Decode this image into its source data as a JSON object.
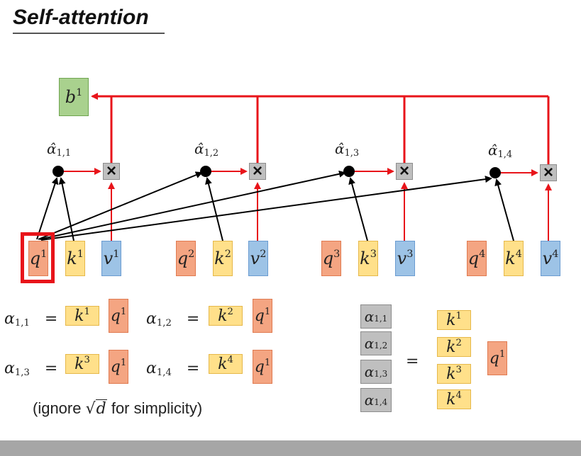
{
  "slide": {
    "title": "Self-attention",
    "caption_prefix": "(ignore ",
    "caption_sqrt": "√",
    "caption_d": "d",
    "caption_suffix": " for simplicity)"
  },
  "output": {
    "var": "b",
    "sup": "1"
  },
  "inputs": [
    {
      "q": "q",
      "k": "k",
      "v": "v",
      "sup": "1"
    },
    {
      "q": "q",
      "k": "k",
      "v": "v",
      "sup": "2"
    },
    {
      "q": "q",
      "k": "k",
      "v": "v",
      "sup": "3"
    },
    {
      "q": "q",
      "k": "k",
      "v": "v",
      "sup": "4"
    }
  ],
  "alpha_hats": [
    {
      "sym": "α̂",
      "sub": "1,1"
    },
    {
      "sym": "α̂",
      "sub": "1,2"
    },
    {
      "sym": "α̂",
      "sub": "1,3"
    },
    {
      "sym": "α̂",
      "sub": "1,4"
    }
  ],
  "multiply_symbol": "×",
  "equations": [
    {
      "lhs_sym": "α",
      "lhs_sub": "1,1",
      "eq": "=",
      "k": "k",
      "k_sup": "1",
      "q": "q",
      "q_sup": "1"
    },
    {
      "lhs_sym": "α",
      "lhs_sub": "1,2",
      "eq": "=",
      "k": "k",
      "k_sup": "2",
      "q": "q",
      "q_sup": "1"
    },
    {
      "lhs_sym": "α",
      "lhs_sub": "1,3",
      "eq": "=",
      "k": "k",
      "k_sup": "3",
      "q": "q",
      "q_sup": "1"
    },
    {
      "lhs_sym": "α",
      "lhs_sub": "1,4",
      "eq": "=",
      "k": "k",
      "k_sup": "4",
      "q": "q",
      "q_sup": "1"
    }
  ],
  "matrix": {
    "alphas": [
      {
        "sym": "α",
        "sub": "1,1"
      },
      {
        "sym": "α",
        "sub": "1,2"
      },
      {
        "sym": "α",
        "sub": "1,3"
      },
      {
        "sym": "α",
        "sub": "1,4"
      }
    ],
    "eq": "=",
    "keys": [
      {
        "sym": "k",
        "sup": "1"
      },
      {
        "sym": "k",
        "sup": "2"
      },
      {
        "sym": "k",
        "sup": "3"
      },
      {
        "sym": "k",
        "sup": "4"
      }
    ],
    "query": {
      "sym": "q",
      "sup": "1"
    }
  },
  "colors": {
    "query": "#f4a582",
    "key": "#ffe08a",
    "value": "#9dc3e6",
    "output": "#a9d18e",
    "score": "#bfbfbf",
    "highlight": "#e8141a",
    "value_wire": "#e8141a"
  }
}
